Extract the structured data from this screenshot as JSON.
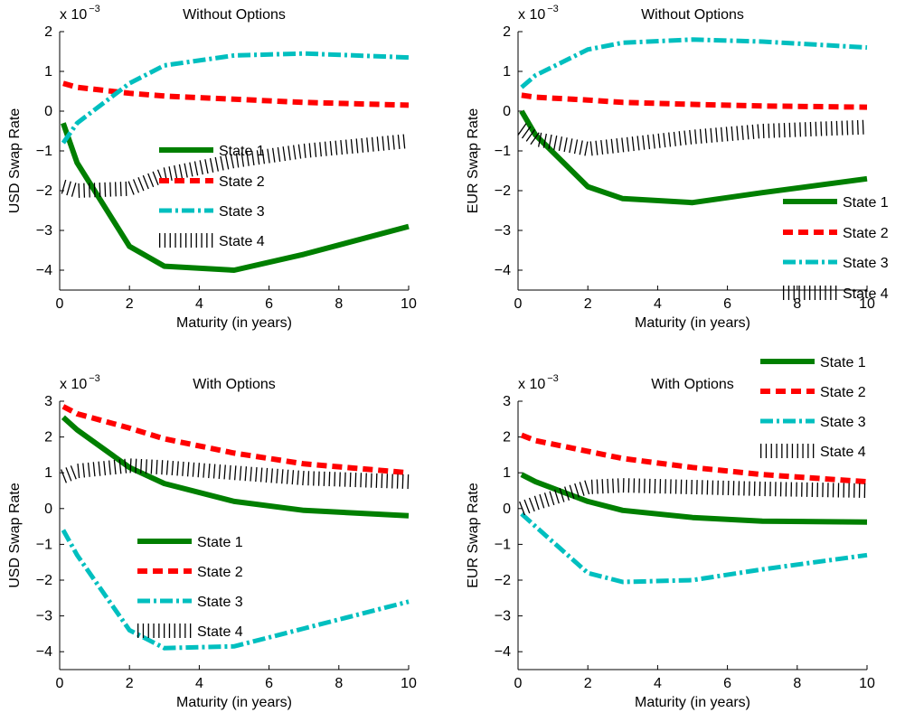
{
  "colors": {
    "State 1": "#007f00",
    "State 2": "#ff0000",
    "State 3": "#00bfbf",
    "State 4": "#000000"
  },
  "chart_data": [
    {
      "type": "line",
      "title": "Without Options",
      "xlabel": "Maturity (in years)",
      "ylabel": "USD Swap Rate",
      "exponent_label": "x 10",
      "exponent_power": "−3",
      "xlim": [
        0,
        10
      ],
      "ylim": [
        -4.5,
        2
      ],
      "xticks": [
        "0",
        "2",
        "4",
        "6",
        "8",
        "10"
      ],
      "yticks": [
        "−4",
        "−3",
        "−2",
        "−1",
        "0",
        "1",
        "2"
      ],
      "legend_location": "center",
      "grid": false,
      "x": [
        0.1,
        0.5,
        2,
        3,
        5,
        7,
        10
      ],
      "series": [
        {
          "name": "State 1",
          "style": "solid",
          "values": [
            -0.3,
            -1.3,
            -3.4,
            -3.9,
            -4.0,
            -3.6,
            -2.9
          ]
        },
        {
          "name": "State 2",
          "style": "dashed",
          "values": [
            0.7,
            0.6,
            0.45,
            0.38,
            0.3,
            0.22,
            0.15
          ]
        },
        {
          "name": "State 3",
          "style": "dashdot",
          "values": [
            -0.8,
            -0.3,
            0.7,
            1.15,
            1.4,
            1.45,
            1.35
          ]
        },
        {
          "name": "State 4",
          "style": "hatched",
          "values": [
            -1.9,
            -2.0,
            -1.95,
            -1.6,
            -1.25,
            -1.0,
            -0.75
          ]
        }
      ]
    },
    {
      "type": "line",
      "title": "Without Options",
      "xlabel": "Maturity (in years)",
      "ylabel": "EUR Swap Rate",
      "exponent_label": "x 10",
      "exponent_power": "−3",
      "xlim": [
        0,
        10
      ],
      "ylim": [
        -4.5,
        2
      ],
      "xticks": [
        "0",
        "2",
        "4",
        "6",
        "8",
        "10"
      ],
      "yticks": [
        "−4",
        "−3",
        "−2",
        "−1",
        "0",
        "1",
        "2"
      ],
      "legend_location": "lower-right",
      "grid": false,
      "x": [
        0.1,
        0.5,
        2,
        3,
        5,
        7,
        10
      ],
      "series": [
        {
          "name": "State 1",
          "style": "solid",
          "values": [
            0.0,
            -0.6,
            -1.9,
            -2.2,
            -2.3,
            -2.05,
            -1.7
          ]
        },
        {
          "name": "State 2",
          "style": "dashed",
          "values": [
            0.4,
            0.35,
            0.28,
            0.22,
            0.17,
            0.13,
            0.1
          ]
        },
        {
          "name": "State 3",
          "style": "dashdot",
          "values": [
            0.6,
            0.9,
            1.55,
            1.72,
            1.8,
            1.75,
            1.6
          ]
        },
        {
          "name": "State 4",
          "style": "hatched",
          "values": [
            -0.45,
            -0.7,
            -0.95,
            -0.85,
            -0.65,
            -0.5,
            -0.4
          ]
        }
      ]
    },
    {
      "type": "line",
      "title": "With Options",
      "xlabel": "Maturity (in years)",
      "ylabel": "USD Swap Rate",
      "exponent_label": "x 10",
      "exponent_power": "−3",
      "xlim": [
        0,
        10
      ],
      "ylim": [
        -4.5,
        3
      ],
      "xticks": [
        "0",
        "2",
        "4",
        "6",
        "8",
        "10"
      ],
      "yticks": [
        "−4",
        "−3",
        "−2",
        "−1",
        "0",
        "1",
        "2",
        "3"
      ],
      "legend_location": "lower-left",
      "grid": false,
      "x": [
        0.1,
        0.5,
        2,
        3,
        5,
        7,
        10
      ],
      "series": [
        {
          "name": "State 1",
          "style": "solid",
          "values": [
            2.55,
            2.2,
            1.15,
            0.7,
            0.2,
            -0.05,
            -0.2
          ]
        },
        {
          "name": "State 2",
          "style": "dashed",
          "values": [
            2.85,
            2.65,
            2.25,
            1.95,
            1.55,
            1.25,
            1.0
          ]
        },
        {
          "name": "State 3",
          "style": "dashdot",
          "values": [
            -0.6,
            -1.3,
            -3.4,
            -3.9,
            -3.85,
            -3.35,
            -2.6
          ]
        },
        {
          "name": "State 4",
          "style": "hatched",
          "values": [
            0.9,
            1.05,
            1.2,
            1.15,
            1.0,
            0.85,
            0.75
          ]
        }
      ]
    },
    {
      "type": "line",
      "title": "With Options",
      "xlabel": "Maturity (in years)",
      "ylabel": "EUR Swap Rate",
      "exponent_label": "x 10",
      "exponent_power": "−3",
      "xlim": [
        0,
        10
      ],
      "ylim": [
        -4.5,
        3
      ],
      "xticks": [
        "0",
        "2",
        "4",
        "6",
        "8",
        "10"
      ],
      "yticks": [
        "−4",
        "−3",
        "−2",
        "−1",
        "0",
        "1",
        "2",
        "3"
      ],
      "legend_location": "top-right",
      "grid": false,
      "x": [
        0.1,
        0.5,
        2,
        3,
        5,
        7,
        10
      ],
      "series": [
        {
          "name": "State 1",
          "style": "solid",
          "values": [
            0.95,
            0.75,
            0.2,
            -0.05,
            -0.25,
            -0.35,
            -0.38
          ]
        },
        {
          "name": "State 2",
          "style": "dashed",
          "values": [
            2.05,
            1.9,
            1.6,
            1.4,
            1.15,
            0.95,
            0.75
          ]
        },
        {
          "name": "State 3",
          "style": "dashdot",
          "values": [
            -0.15,
            -0.5,
            -1.8,
            -2.05,
            -2.0,
            -1.7,
            -1.3
          ]
        },
        {
          "name": "State 4",
          "style": "hatched",
          "values": [
            0.0,
            0.15,
            0.6,
            0.65,
            0.6,
            0.55,
            0.5
          ]
        }
      ]
    }
  ]
}
